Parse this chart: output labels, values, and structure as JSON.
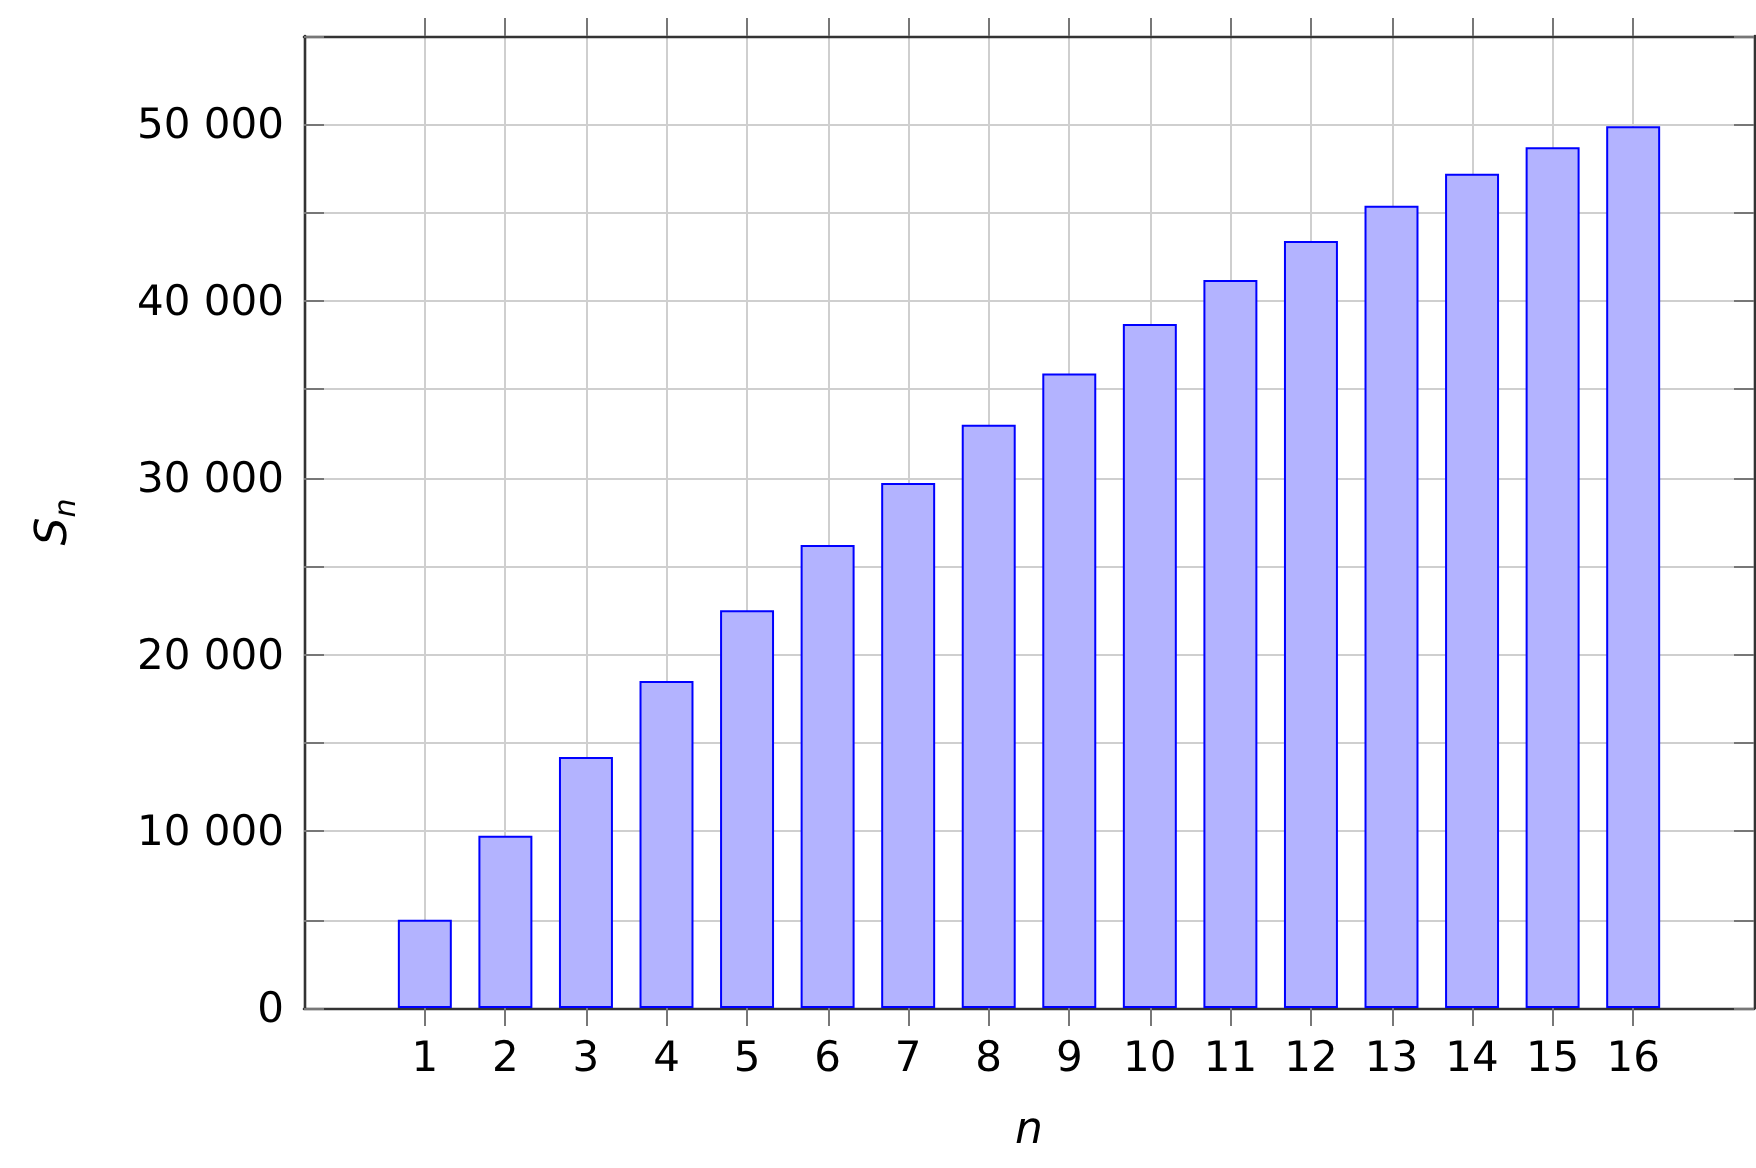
{
  "chart_data": {
    "type": "bar",
    "xlabel": "n",
    "ylabel": "S$_{n}$",
    "x": [
      1,
      2,
      3,
      4,
      5,
      6,
      7,
      8,
      9,
      10,
      11,
      12,
      13,
      14,
      15,
      16
    ],
    "values": [
      5000,
      9750,
      14200,
      18500,
      22500,
      26200,
      29700,
      33000,
      35900,
      38700,
      41200,
      43400,
      45400,
      47200,
      48700,
      49900
    ],
    "color": "#b3b3ff",
    "xlim": [
      -0.5,
      17.5
    ],
    "xticks": [
      1,
      2,
      3,
      4,
      5,
      6,
      7,
      8,
      9,
      10,
      11,
      12,
      13,
      14,
      15,
      16
    ],
    "ylim": [
      0,
      55000
    ],
    "yticks": [
      {
        "value": 0,
        "label": "0"
      },
      {
        "value": 5000,
        "label": null
      },
      {
        "value": 10000,
        "label": "10 000"
      },
      {
        "value": 15000,
        "label": null
      },
      {
        "value": 20000,
        "label": "20 000"
      },
      {
        "value": 25000,
        "label": null
      },
      {
        "value": 30000,
        "label": "30 000"
      },
      {
        "value": 35000,
        "label": null
      },
      {
        "value": 40000,
        "label": "40 000"
      },
      {
        "value": 45000,
        "label": null
      },
      {
        "value": 50000,
        "label": "50 000"
      },
      {
        "value": 55000,
        "label": null
      }
    ],
    "grid": true
  }
}
